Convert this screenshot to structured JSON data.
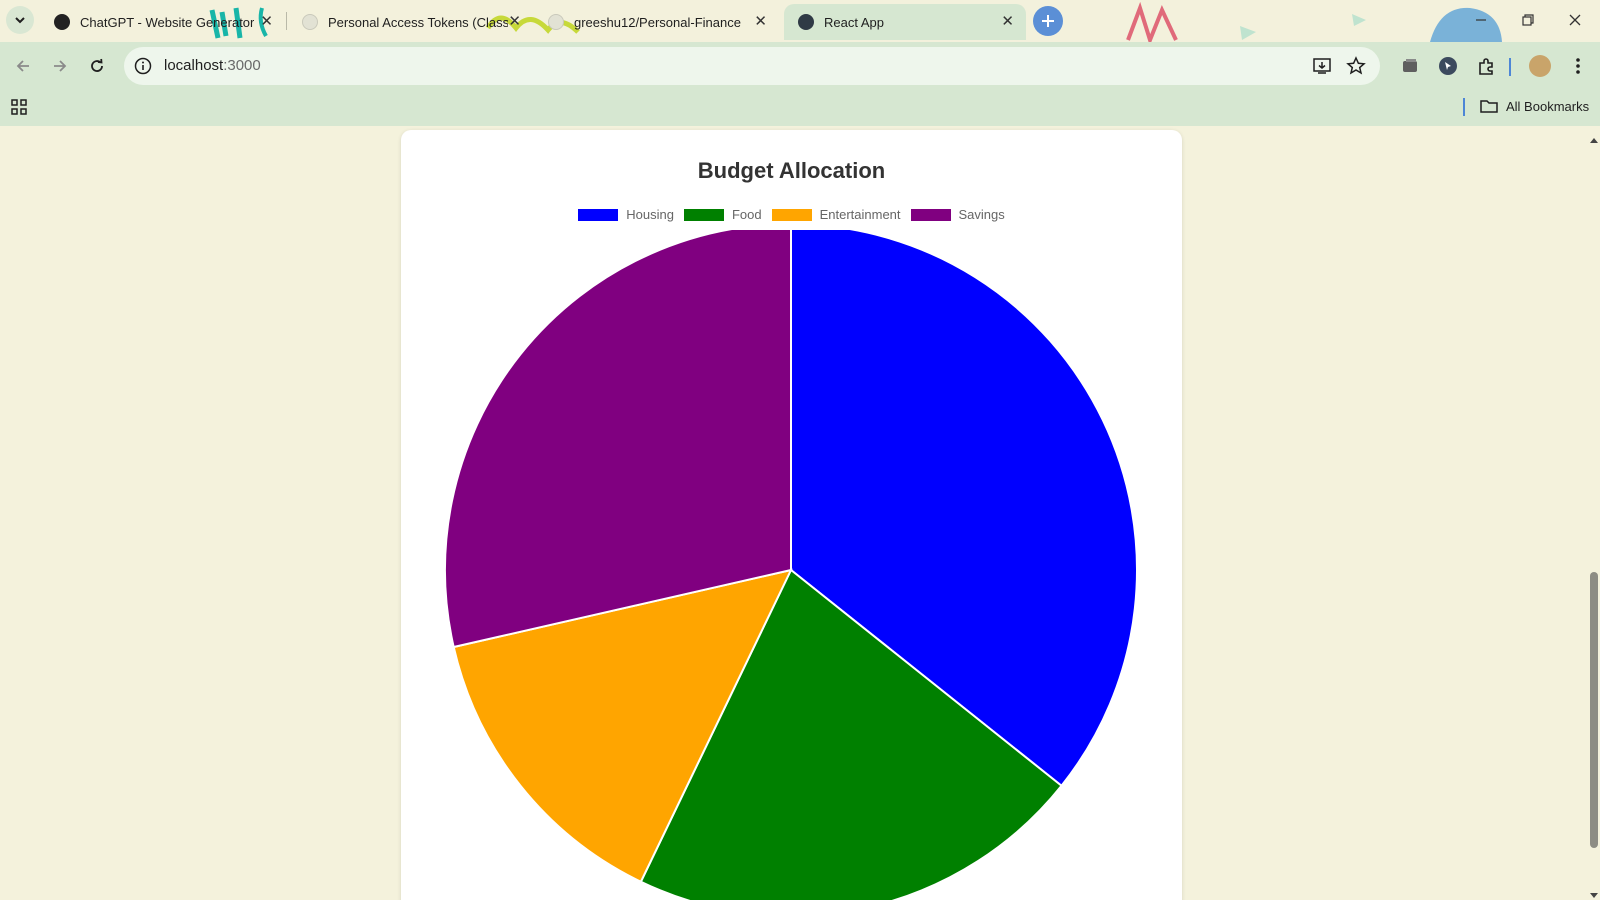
{
  "browser": {
    "tabs": [
      {
        "title": "ChatGPT - Website Generator",
        "favicon": "chatgpt-icon",
        "active": false
      },
      {
        "title": "Personal Access Tokens (Classic)",
        "favicon": "github-icon",
        "active": false
      },
      {
        "title": "greeshu12/Personal-Finance",
        "favicon": "github-icon",
        "active": false
      },
      {
        "title": "React App",
        "favicon": "react-icon",
        "active": true
      }
    ],
    "close_glyph": "✕",
    "url_host": "localhost",
    "url_port": ":3000",
    "bookmarks_label": "All Bookmarks"
  },
  "chart_data": {
    "type": "pie",
    "title": "Budget Allocation",
    "categories": [
      "Housing",
      "Food",
      "Entertainment",
      "Savings"
    ],
    "values": [
      1500,
      900,
      600,
      1200
    ],
    "colors": [
      "#0000ff",
      "#008000",
      "#ffa500",
      "#800080"
    ],
    "legend": "top",
    "border_color": "#ffffff"
  }
}
